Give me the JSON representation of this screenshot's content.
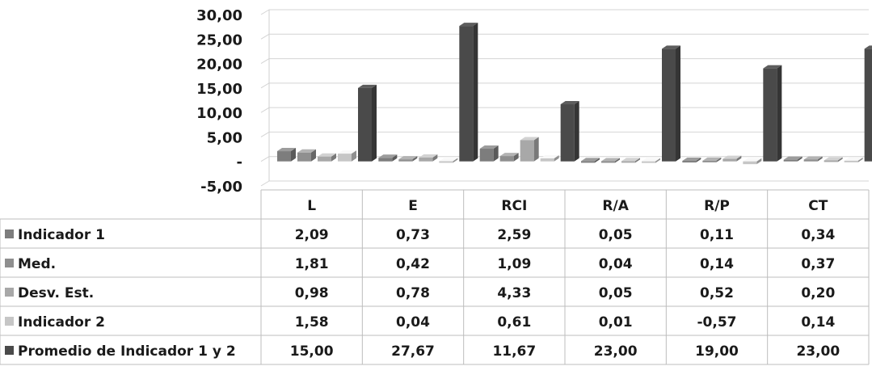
{
  "chart_data": {
    "type": "bar",
    "title": "",
    "xlabel": "",
    "ylabel": "",
    "ylim": [
      -5,
      30
    ],
    "yticks": [
      {
        "value": 30,
        "label": "30,00"
      },
      {
        "value": 25,
        "label": "25,00"
      },
      {
        "value": 20,
        "label": "20,00"
      },
      {
        "value": 15,
        "label": "15,00"
      },
      {
        "value": 10,
        "label": "10,00"
      },
      {
        "value": 5,
        "label": "5,00"
      },
      {
        "value": 0,
        "label": "-"
      },
      {
        "value": -5,
        "label": "-5,00"
      }
    ],
    "grid": true,
    "legend": "data-table",
    "categories": [
      "L",
      "E",
      "RCI",
      "R/A",
      "R/P",
      "CT"
    ],
    "series": [
      {
        "name": "Indicador 1",
        "color": "#7d7d7d",
        "values": [
          2.09,
          0.73,
          2.59,
          0.05,
          0.11,
          0.34
        ],
        "labels": [
          "2,09",
          "0,73",
          "2,59",
          "0,05",
          "0,11",
          "0,34"
        ]
      },
      {
        "name": "Med.",
        "color": "#8f8f8f",
        "values": [
          1.81,
          0.42,
          1.09,
          0.04,
          0.14,
          0.37
        ],
        "labels": [
          "1,81",
          "0,42",
          "1,09",
          "0,04",
          "0,14",
          "0,37"
        ]
      },
      {
        "name": "Desv. Est.",
        "color": "#a8a8a8",
        "values": [
          0.98,
          0.78,
          4.33,
          0.05,
          0.52,
          0.2
        ],
        "labels": [
          "0,98",
          "0,78",
          "4,33",
          "0,05",
          "0,52",
          "0,20"
        ]
      },
      {
        "name": "Indicador 2",
        "color": "#c6c6c6",
        "values": [
          1.58,
          0.04,
          0.61,
          0.01,
          -0.57,
          0.14
        ],
        "labels": [
          "1,58",
          "0,04",
          "0,61",
          "0,01",
          "-0,57",
          "0,14"
        ]
      },
      {
        "name": "Promedio de Indicador 1 y 2",
        "color": "#4a4a4a",
        "values": [
          15.0,
          27.67,
          11.67,
          23.0,
          19.0,
          23.0
        ],
        "labels": [
          "15,00",
          "27,67",
          "11,67",
          "23,00",
          "19,00",
          "23,00"
        ]
      }
    ]
  }
}
